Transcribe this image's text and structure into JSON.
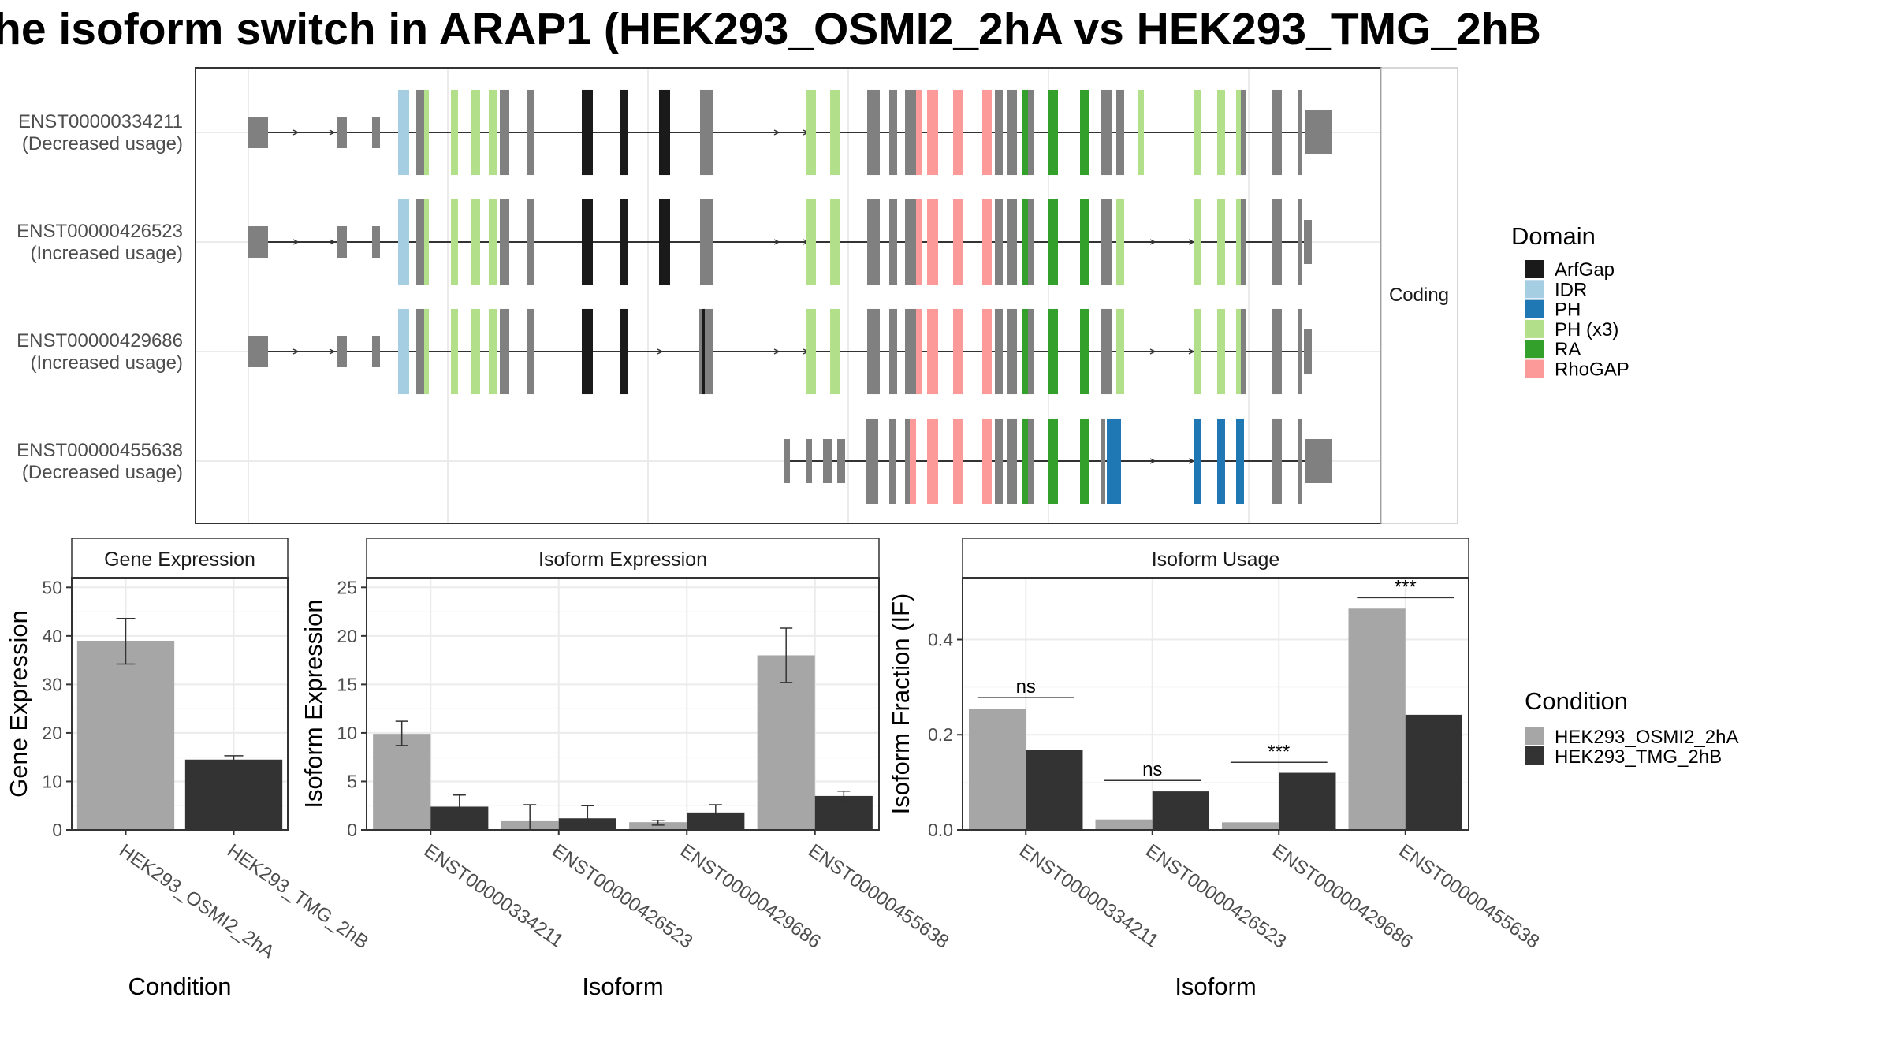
{
  "title": "he isoform switch in ARAP1 (HEK293_OSMI2_2hA vs HEK293_TMG_2hB",
  "structure": {
    "facet_label": "Coding",
    "legend_title": "Domain",
    "legend_items": [
      {
        "label": "ArfGap",
        "color": "#1a1a1a"
      },
      {
        "label": "IDR",
        "color": "#a6cee3"
      },
      {
        "label": "PH",
        "color": "#1f78b4"
      },
      {
        "label": "PH (x3)",
        "color": "#b2df8a"
      },
      {
        "label": "RA",
        "color": "#33a02c"
      },
      {
        "label": "RhoGAP",
        "color": "#fb9a99"
      }
    ],
    "transcripts": [
      {
        "id": "ENST00000334211",
        "usage": "(Decreased usage)"
      },
      {
        "id": "ENST00000426523",
        "usage": "(Increased usage)"
      },
      {
        "id": "ENST00000429686",
        "usage": "(Increased usage)"
      },
      {
        "id": "ENST00000455638",
        "usage": "(Decreased usage)"
      }
    ]
  },
  "condition_legend": {
    "title": "Condition",
    "items": [
      {
        "label": "HEK293_OSMI2_2hA",
        "color": "#a6a6a6"
      },
      {
        "label": "HEK293_TMG_2hB",
        "color": "#333333"
      }
    ]
  },
  "chart_data": [
    {
      "type": "bar",
      "title": "Gene Expression",
      "xlabel": "Condition",
      "ylabel": "Gene Expression",
      "ylim": [
        0,
        52
      ],
      "yticks": [
        0,
        10,
        20,
        30,
        40,
        50
      ],
      "categories": [
        "HEK293_OSMI2_2hA",
        "HEK293_TMG_2hB"
      ],
      "values": [
        39,
        14.5
      ],
      "error": [
        [
          34.2,
          43.6
        ],
        [
          13.8,
          15.3
        ]
      ],
      "colors": [
        "#a6a6a6",
        "#333333"
      ]
    },
    {
      "type": "bar",
      "title": "Isoform Expression",
      "xlabel": "Isoform",
      "ylabel": "Isoform Expression",
      "ylim": [
        0,
        26
      ],
      "yticks": [
        0,
        5,
        10,
        15,
        20,
        25
      ],
      "categories": [
        "ENST00000334211",
        "ENST00000426523",
        "ENST00000429686",
        "ENST00000455638"
      ],
      "series": [
        {
          "name": "HEK293_OSMI2_2hA",
          "values": [
            9.9,
            0.9,
            0.8,
            18.0
          ],
          "error": [
            [
              8.7,
              11.2
            ],
            [
              0.0,
              2.6
            ],
            [
              0.5,
              1.0
            ],
            [
              15.2,
              20.8
            ]
          ]
        },
        {
          "name": "HEK293_TMG_2hB",
          "values": [
            2.4,
            1.2,
            1.8,
            3.5
          ],
          "error": [
            [
              1.2,
              3.6
            ],
            [
              0.4,
              2.5
            ],
            [
              1.0,
              2.6
            ],
            [
              3.0,
              4.0
            ]
          ]
        }
      ]
    },
    {
      "type": "bar",
      "title": "Isoform Usage",
      "xlabel": "Isoform",
      "ylabel": "Isoform Fraction (IF)",
      "ylim": [
        0,
        0.53
      ],
      "yticks": [
        0.0,
        0.2,
        0.4
      ],
      "ytick_labels": [
        "0.0",
        "0.2",
        "0.4"
      ],
      "categories": [
        "ENST00000334211",
        "ENST00000426523",
        "ENST00000429686",
        "ENST00000455638"
      ],
      "series": [
        {
          "name": "HEK293_OSMI2_2hA",
          "values": [
            0.255,
            0.022,
            0.016,
            0.465
          ]
        },
        {
          "name": "HEK293_TMG_2hB",
          "values": [
            0.168,
            0.081,
            0.12,
            0.242
          ]
        }
      ],
      "significance": [
        {
          "label": "ns",
          "value": 0.278
        },
        {
          "label": "ns",
          "value": 0.104
        },
        {
          "label": "***",
          "value": 0.142
        },
        {
          "label": "***",
          "value": 0.488
        }
      ]
    }
  ]
}
